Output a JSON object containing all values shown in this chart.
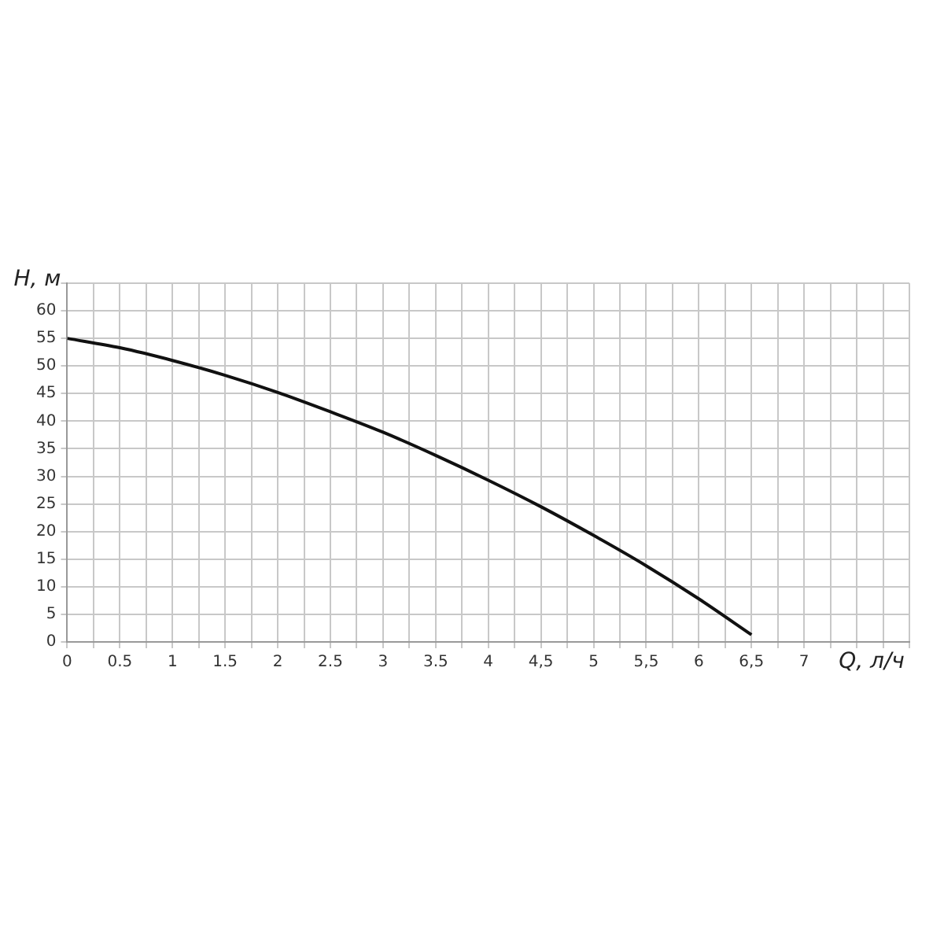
{
  "chart_data": {
    "type": "line",
    "xlabel": "Q, л/ч",
    "ylabel": "H, м",
    "x": [
      0,
      0.5,
      1,
      1.5,
      2,
      2.5,
      3,
      3.5,
      4,
      4.5,
      5,
      5.5,
      6,
      6.5
    ],
    "series": [
      {
        "color": "#111111",
        "values": [
          55,
          53.3,
          51,
          48.3,
          45.2,
          41.7,
          38,
          33.8,
          29.3,
          24.5,
          19.3,
          13.8,
          7.8,
          1.3
        ]
      }
    ],
    "xlim": [
      0,
      8
    ],
    "xticks": [
      0,
      {
        "value": 0.25,
        "label": null
      },
      {
        "value": 0.5,
        "label": "0.5"
      },
      {
        "value": 0.75,
        "label": null
      },
      1,
      {
        "value": 1.25,
        "label": null
      },
      {
        "value": 1.5,
        "label": "1.5"
      },
      {
        "value": 1.75,
        "label": null
      },
      2,
      {
        "value": 2.25,
        "label": null
      },
      {
        "value": 2.5,
        "label": "2.5"
      },
      {
        "value": 2.75,
        "label": null
      },
      3,
      {
        "value": 3.25,
        "label": null
      },
      {
        "value": 3.5,
        "label": "3.5"
      },
      {
        "value": 3.75,
        "label": null
      },
      4,
      {
        "value": 4.25,
        "label": null
      },
      {
        "value": 4.5,
        "label": "4,5"
      },
      {
        "value": 4.75,
        "label": null
      },
      5,
      {
        "value": 5.25,
        "label": null
      },
      {
        "value": 5.5,
        "label": "5,5"
      },
      {
        "value": 5.75,
        "label": null
      },
      6,
      {
        "value": 6.25,
        "label": null
      },
      {
        "value": 6.5,
        "label": "6,5"
      },
      {
        "value": 6.75,
        "label": null
      },
      7,
      {
        "value": 7.25,
        "label": null
      },
      {
        "value": 7.5,
        "label": null
      },
      {
        "value": 7.75,
        "label": null
      },
      {
        "value": 8,
        "label": null
      }
    ],
    "ylim": [
      0,
      65
    ],
    "yticks": [
      0,
      5,
      10,
      15,
      20,
      25,
      30,
      35,
      40,
      45,
      50,
      55,
      60,
      {
        "value": 65,
        "label": null
      }
    ],
    "grid": true,
    "legend": false,
    "marker": "none",
    "line_style": "solid"
  }
}
